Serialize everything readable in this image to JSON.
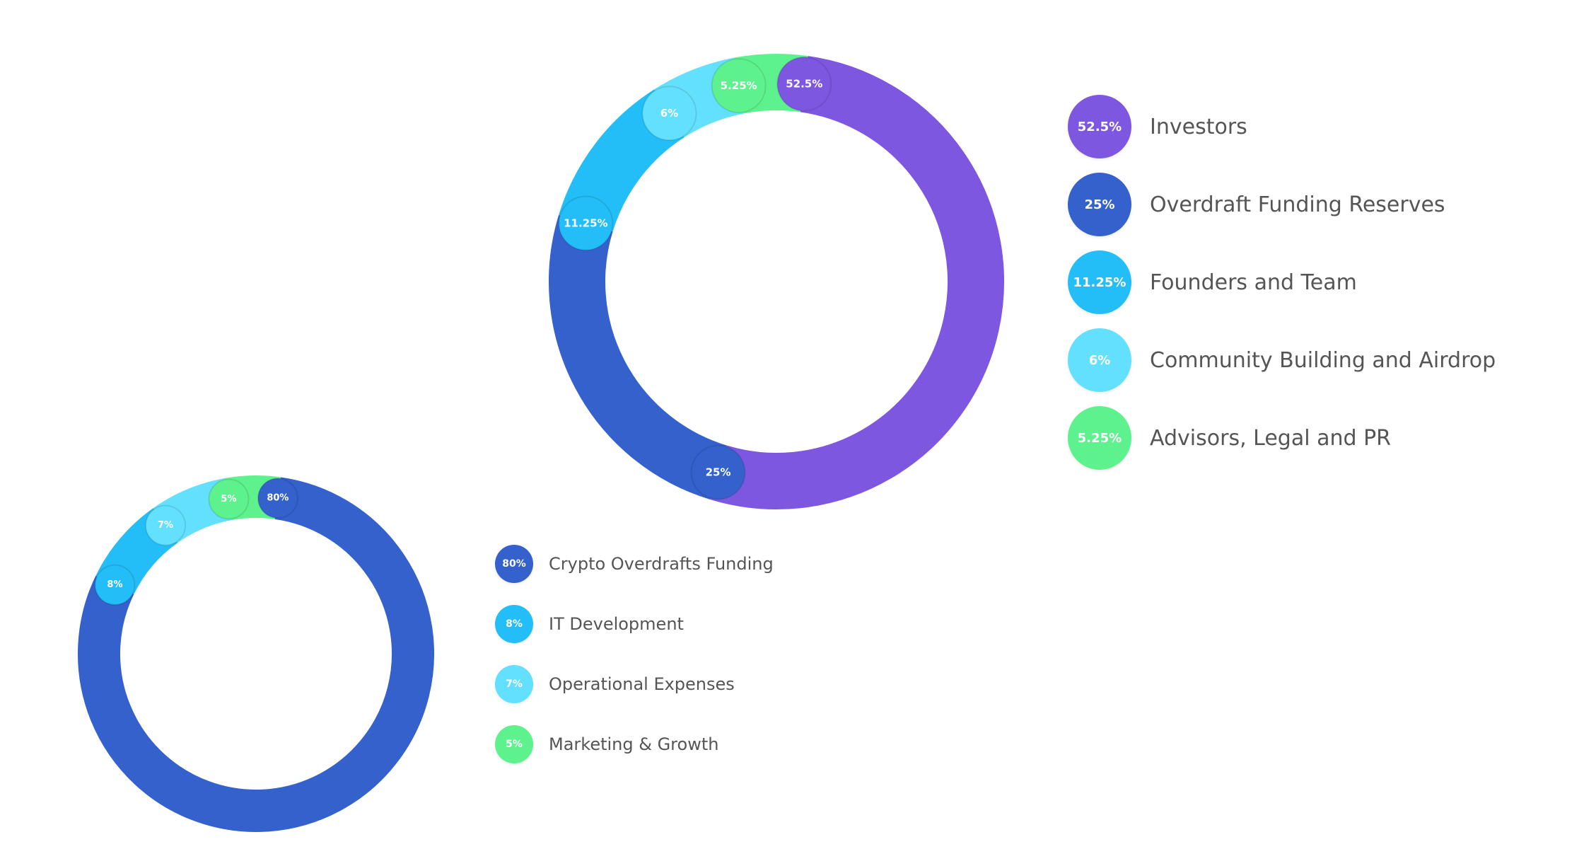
{
  "chart_data": [
    {
      "type": "pie",
      "categories": [
        "Investors",
        "Overdraft Funding Reserves",
        "Founders and Team",
        "Community Building and Airdrop",
        "Advisors, Legal and PR"
      ],
      "values": [
        52.5,
        25,
        11.25,
        6,
        5.25
      ],
      "labels": [
        "52.5%",
        "25%",
        "11.25%",
        "6%",
        "5.25%"
      ],
      "colors": [
        "#7E57E0",
        "#3461CC",
        "#23BEF7",
        "#62E0FD",
        "#5EF28E"
      ],
      "legend": "right",
      "style": "donut"
    },
    {
      "type": "pie",
      "categories": [
        "Crypto Overdrafts Funding",
        "IT Development",
        "Operational Expenses",
        "Marketing & Growth"
      ],
      "values": [
        80,
        8,
        7,
        5
      ],
      "labels": [
        "80%",
        "8%",
        "7%",
        "5%"
      ],
      "colors": [
        "#3461CC",
        "#23BEF7",
        "#62E0FD",
        "#5EF28E"
      ],
      "legend": "right",
      "style": "donut"
    }
  ]
}
